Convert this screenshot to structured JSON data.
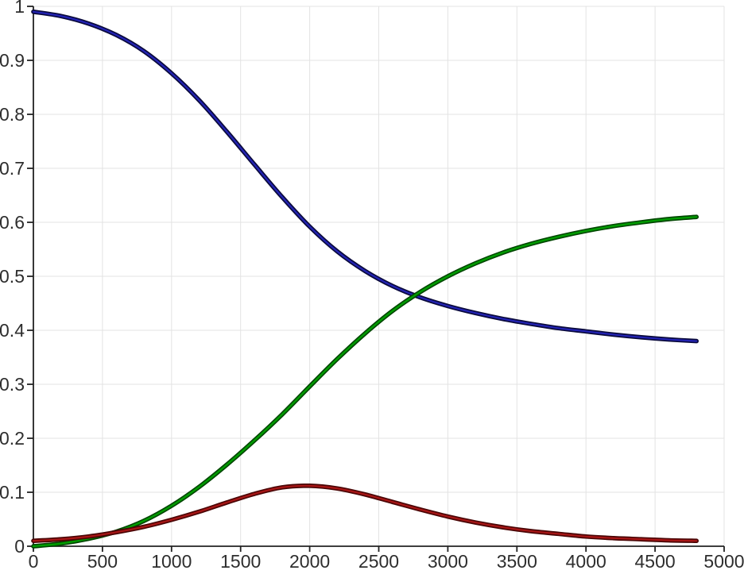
{
  "figure": {
    "background": "#ffffff"
  },
  "chart_data": {
    "type": "line",
    "title": "",
    "xlabel": "",
    "ylabel": "",
    "xlim": [
      0,
      5000
    ],
    "ylim": [
      0,
      1
    ],
    "grid": true,
    "legend": "none",
    "box": "open-top-right",
    "x_ticks": [
      0,
      500,
      1000,
      1500,
      2000,
      2500,
      3000,
      3500,
      4000,
      4500,
      5000
    ],
    "x_tick_labels": [
      "0",
      "500",
      "1000",
      "1500",
      "2000",
      "2500",
      "3000",
      "3500",
      "4000",
      "4500",
      "5000"
    ],
    "y_ticks": [
      0,
      0.1,
      0.2,
      0.3,
      0.4,
      0.5,
      0.6,
      0.7,
      0.8,
      0.9,
      1
    ],
    "y_tick_labels": [
      "0",
      "0.1",
      "0.2",
      "0.3",
      "0.4",
      "0.5",
      "0.6",
      "0.7",
      "0.8",
      "0.9",
      "1"
    ],
    "axis_style": {
      "axis_color": "#222222",
      "grid_color": "#e3e3e3",
      "tick_label_color": "#2e2e2e",
      "tick_length": 8
    },
    "x": [
      0,
      200,
      400,
      600,
      800,
      1000,
      1200,
      1400,
      1600,
      1800,
      2000,
      2200,
      2400,
      2600,
      2800,
      3000,
      3200,
      3400,
      3600,
      3800,
      4000,
      4200,
      4400,
      4600,
      4800
    ],
    "series": [
      {
        "name": "blue-curve",
        "color_core": "#2323b4",
        "color_edge": "#0a0a3c",
        "values": [
          0.99,
          0.982,
          0.968,
          0.947,
          0.917,
          0.876,
          0.826,
          0.768,
          0.707,
          0.647,
          0.592,
          0.546,
          0.51,
          0.482,
          0.461,
          0.445,
          0.432,
          0.421,
          0.412,
          0.404,
          0.398,
          0.392,
          0.387,
          0.383,
          0.38
        ]
      },
      {
        "name": "green-curve",
        "color_core": "#00a000",
        "color_edge": "#004700",
        "values": [
          0.0,
          0.005,
          0.014,
          0.027,
          0.047,
          0.075,
          0.11,
          0.151,
          0.196,
          0.244,
          0.296,
          0.347,
          0.394,
          0.436,
          0.471,
          0.5,
          0.524,
          0.544,
          0.56,
          0.573,
          0.584,
          0.593,
          0.6,
          0.606,
          0.61
        ]
      },
      {
        "name": "red-curve",
        "color_core": "#a81616",
        "color_edge": "#4a0505",
        "values": [
          0.01,
          0.013,
          0.018,
          0.026,
          0.036,
          0.049,
          0.064,
          0.081,
          0.097,
          0.109,
          0.112,
          0.107,
          0.096,
          0.082,
          0.068,
          0.055,
          0.044,
          0.035,
          0.028,
          0.023,
          0.018,
          0.015,
          0.013,
          0.011,
          0.01
        ]
      }
    ]
  }
}
